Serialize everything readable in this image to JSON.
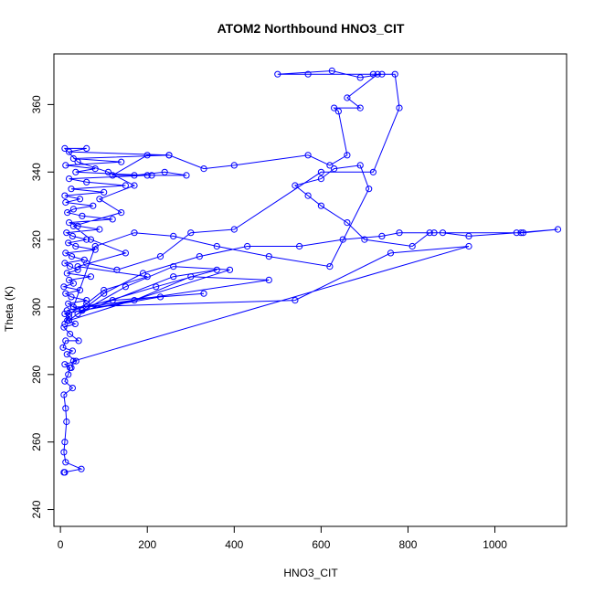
{
  "chart_data": {
    "type": "line",
    "title": "ATOM2 Northbound HNO3_CIT",
    "xlabel": "HNO3_CIT",
    "ylabel": "Theta (K)",
    "xlim": [
      -15,
      1165
    ],
    "ylim": [
      235,
      375
    ],
    "x_ticks": [
      0,
      200,
      400,
      600,
      800,
      1000
    ],
    "y_ticks": [
      240,
      260,
      280,
      300,
      320,
      340,
      360
    ],
    "marker": "open-circle",
    "line_color": "#0000ff",
    "grid": false,
    "series": [
      {
        "points": [
          [
            10,
            251
          ],
          [
            8,
            251
          ],
          [
            48,
            252
          ],
          [
            12,
            254
          ],
          [
            8,
            257
          ],
          [
            10,
            260
          ],
          [
            14,
            266
          ],
          [
            12,
            270
          ],
          [
            8,
            274
          ],
          [
            28,
            276
          ],
          [
            10,
            278
          ],
          [
            18,
            280
          ],
          [
            22,
            282
          ],
          [
            10,
            283
          ],
          [
            36,
            284
          ],
          [
            15,
            286
          ],
          [
            28,
            287
          ],
          [
            6,
            288
          ],
          [
            12,
            290
          ],
          [
            42,
            290
          ],
          [
            22,
            292
          ],
          [
            8,
            294
          ],
          [
            34,
            295
          ],
          [
            16,
            296
          ],
          [
            20,
            297
          ],
          [
            10,
            298
          ],
          [
            50,
            299
          ],
          [
            30,
            300
          ],
          [
            18,
            301
          ],
          [
            60,
            302
          ],
          [
            25,
            303
          ],
          [
            12,
            304
          ],
          [
            45,
            305
          ],
          [
            8,
            306
          ],
          [
            30,
            307
          ],
          [
            20,
            308
          ],
          [
            70,
            309
          ],
          [
            15,
            310
          ],
          [
            40,
            311
          ],
          [
            22,
            312
          ],
          [
            10,
            313
          ],
          [
            55,
            314
          ],
          [
            26,
            315
          ],
          [
            12,
            316
          ],
          [
            80,
            317
          ],
          [
            35,
            318
          ],
          [
            18,
            319
          ],
          [
            60,
            320
          ],
          [
            28,
            321
          ],
          [
            14,
            322
          ],
          [
            90,
            323
          ],
          [
            40,
            324
          ],
          [
            20,
            325
          ],
          [
            120,
            326
          ],
          [
            50,
            327
          ],
          [
            16,
            328
          ],
          [
            30,
            329
          ],
          [
            75,
            330
          ],
          [
            12,
            331
          ],
          [
            45,
            332
          ],
          [
            10,
            333
          ],
          [
            100,
            334
          ],
          [
            25,
            335
          ],
          [
            150,
            336
          ],
          [
            60,
            337
          ],
          [
            20,
            338
          ],
          [
            200,
            339
          ],
          [
            35,
            340
          ],
          [
            80,
            341
          ],
          [
            12,
            342
          ],
          [
            140,
            343
          ],
          [
            30,
            344
          ],
          [
            250,
            345
          ],
          [
            20,
            346
          ],
          [
            60,
            347
          ],
          [
            10,
            347
          ],
          [
            40,
            343
          ],
          [
            110,
            340
          ],
          [
            170,
            336
          ],
          [
            90,
            332
          ],
          [
            140,
            328
          ],
          [
            30,
            324
          ],
          [
            70,
            320
          ],
          [
            150,
            316
          ],
          [
            40,
            312
          ],
          [
            200,
            309
          ],
          [
            100,
            305
          ],
          [
            60,
            301
          ],
          [
            20,
            298
          ],
          [
            10,
            295
          ]
        ]
      },
      {
        "points": [
          [
            15,
            299
          ],
          [
            120,
            302
          ],
          [
            330,
            304
          ],
          [
            230,
            303
          ],
          [
            50,
            299
          ],
          [
            170,
            302
          ],
          [
            300,
            309
          ],
          [
            480,
            308
          ],
          [
            60,
            300
          ],
          [
            220,
            306
          ],
          [
            360,
            311
          ],
          [
            260,
            309
          ],
          [
            40,
            298
          ],
          [
            150,
            306
          ],
          [
            260,
            312
          ],
          [
            390,
            311
          ],
          [
            20,
            296
          ],
          [
            100,
            304
          ],
          [
            190,
            310
          ],
          [
            320,
            315
          ],
          [
            430,
            318
          ],
          [
            550,
            318
          ],
          [
            650,
            320
          ],
          [
            740,
            321
          ],
          [
            780,
            322
          ],
          [
            860,
            322
          ],
          [
            880,
            322
          ],
          [
            940,
            321
          ],
          [
            1050,
            322
          ],
          [
            1145,
            323
          ],
          [
            1065,
            322
          ],
          [
            1060,
            322
          ],
          [
            850,
            322
          ],
          [
            810,
            318
          ],
          [
            700,
            320
          ],
          [
            660,
            325
          ],
          [
            600,
            330
          ],
          [
            570,
            333
          ],
          [
            540,
            336
          ],
          [
            600,
            338
          ],
          [
            630,
            341
          ],
          [
            690,
            342
          ],
          [
            710,
            335
          ],
          [
            620,
            312
          ],
          [
            480,
            315
          ],
          [
            360,
            318
          ],
          [
            260,
            321
          ],
          [
            170,
            322
          ],
          [
            80,
            318
          ],
          [
            30,
            300
          ],
          [
            540,
            302
          ],
          [
            760,
            316
          ],
          [
            940,
            318
          ],
          [
            30,
            284
          ],
          [
            25,
            282
          ]
        ]
      },
      {
        "points": [
          [
            170,
            339
          ],
          [
            240,
            340
          ],
          [
            290,
            339
          ],
          [
            210,
            339
          ],
          [
            120,
            339
          ],
          [
            200,
            345
          ],
          [
            250,
            345
          ],
          [
            330,
            341
          ],
          [
            400,
            342
          ],
          [
            570,
            345
          ],
          [
            620,
            342
          ],
          [
            660,
            345
          ],
          [
            640,
            358
          ],
          [
            630,
            359
          ],
          [
            690,
            359
          ],
          [
            660,
            362
          ],
          [
            730,
            369
          ],
          [
            740,
            369
          ],
          [
            690,
            368
          ],
          [
            625,
            370
          ],
          [
            500,
            369
          ],
          [
            570,
            369
          ],
          [
            720,
            369
          ],
          [
            770,
            369
          ],
          [
            780,
            359
          ],
          [
            720,
            340
          ],
          [
            600,
            340
          ],
          [
            400,
            323
          ],
          [
            300,
            322
          ],
          [
            230,
            315
          ],
          [
            130,
            311
          ],
          [
            60,
            313
          ]
        ]
      }
    ]
  }
}
